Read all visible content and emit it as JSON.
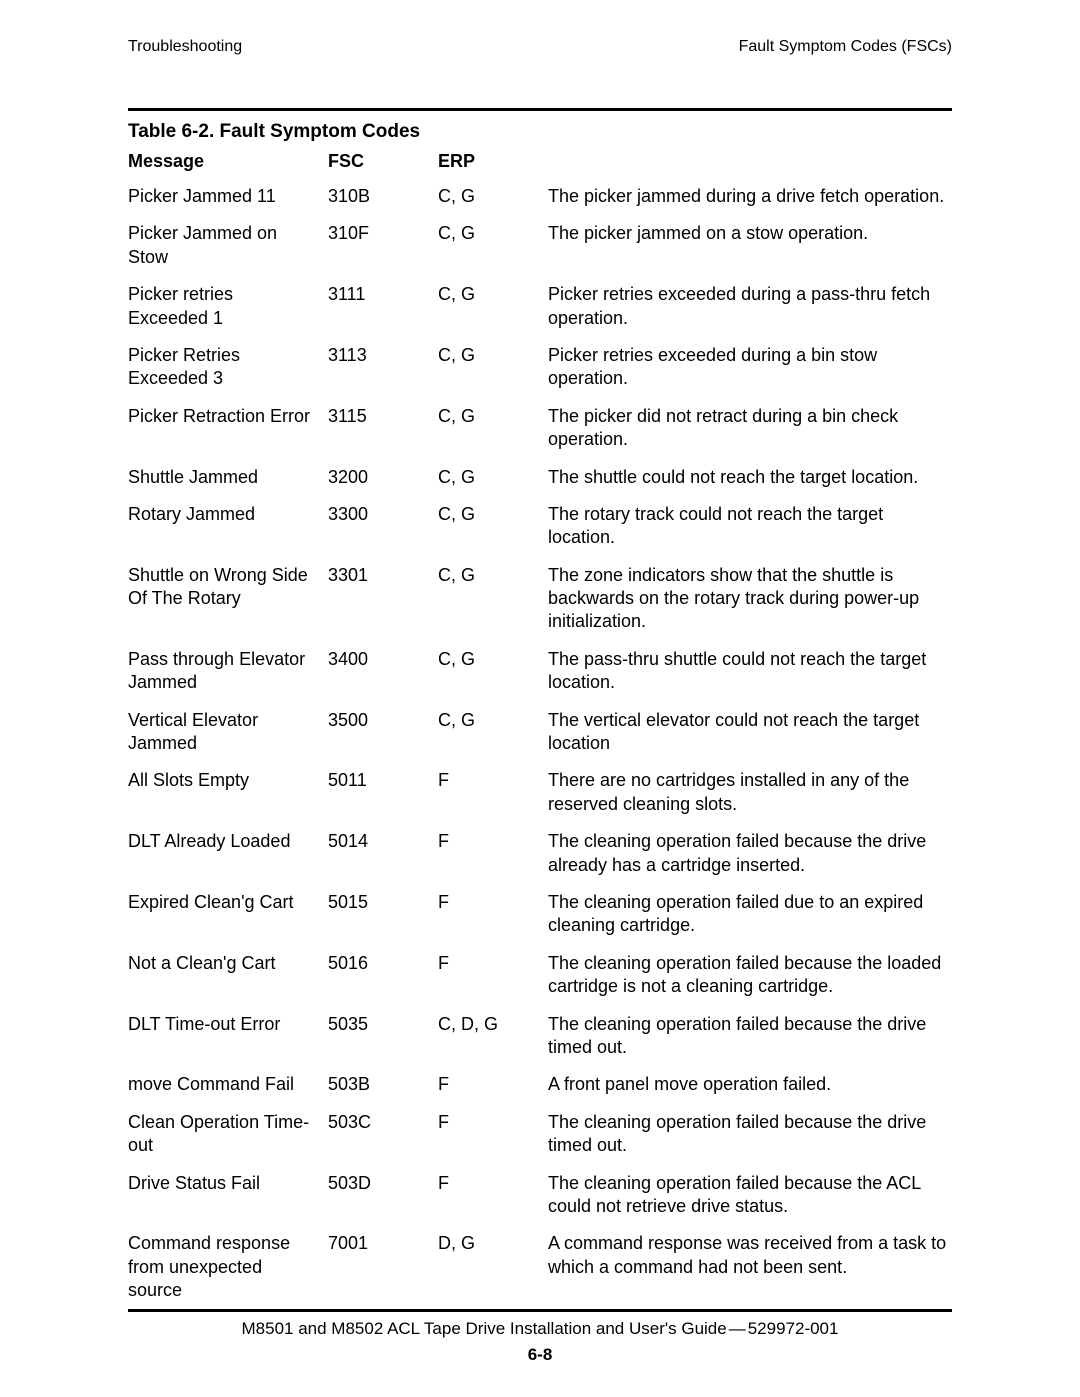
{
  "header": {
    "left": "Troubleshooting",
    "right": "Fault Symptom Codes (FSCs)"
  },
  "table": {
    "title": "Table 6-2.  Fault Symptom Codes",
    "columns": {
      "message": "Message",
      "fsc": "FSC",
      "erp": "ERP"
    },
    "rows": [
      {
        "message": "Picker Jammed 11",
        "fsc": "310B",
        "erp": "C, G",
        "desc": "The picker jammed during a drive fetch operation."
      },
      {
        "message": "Picker Jammed on Stow",
        "fsc": "310F",
        "erp": "C, G",
        "desc": "The picker jammed on a stow operation."
      },
      {
        "message": "Picker retries Exceeded 1",
        "fsc": "3111",
        "erp": "C, G",
        "desc": "Picker retries exceeded during a pass-thru fetch operation."
      },
      {
        "message": "Picker Retries Exceeded 3",
        "fsc": "3113",
        "erp": "C, G",
        "desc": "Picker retries exceeded during a bin stow operation."
      },
      {
        "message": "Picker Retraction Error",
        "fsc": "3115",
        "erp": "C, G",
        "desc": "The picker did not retract during a bin check operation."
      },
      {
        "message": "Shuttle Jammed",
        "fsc": "3200",
        "erp": "C, G",
        "desc": "The shuttle could not reach the target location."
      },
      {
        "message": "Rotary Jammed",
        "fsc": "3300",
        "erp": "C, G",
        "desc": "The rotary track could not reach the target location."
      },
      {
        "message": "Shuttle on Wrong Side Of The Rotary",
        "fsc": "3301",
        "erp": "C, G",
        "desc": "The zone indicators show that the shuttle is backwards on the rotary track during power-up initialization."
      },
      {
        "message": "Pass through Elevator Jammed",
        "fsc": "3400",
        "erp": "C, G",
        "desc": "The pass-thru shuttle could not reach the target location."
      },
      {
        "message": "Vertical Elevator Jammed",
        "fsc": "3500",
        "erp": "C, G",
        "desc": "The vertical elevator could not reach the target location"
      },
      {
        "message": "All Slots Empty",
        "fsc": "5011",
        "erp": "F",
        "desc": "There are no cartridges installed in any of the reserved cleaning slots."
      },
      {
        "message": "DLT Already Loaded",
        "fsc": "5014",
        "erp": "F",
        "desc": "The cleaning operation failed because the drive already has a cartridge inserted."
      },
      {
        "message": "Expired Clean'g Cart",
        "fsc": "5015",
        "erp": "F",
        "desc": "The cleaning operation failed due to an expired cleaning cartridge."
      },
      {
        "message": "Not a Clean'g Cart",
        "fsc": "5016",
        "erp": "F",
        "desc": "The cleaning operation failed because the loaded cartridge is not a cleaning cartridge."
      },
      {
        "message": "DLT Time-out Error",
        "fsc": "5035",
        "erp": "C, D, G",
        "desc": "The cleaning operation failed because the drive timed out."
      },
      {
        "message": "move Command Fail",
        "fsc": "503B",
        "erp": "F",
        "desc": "A front panel move operation failed."
      },
      {
        "message": "Clean Operation Time-out",
        "fsc": "503C",
        "erp": "F",
        "desc": "The cleaning operation failed because the drive timed out."
      },
      {
        "message": "Drive Status Fail",
        "fsc": "503D",
        "erp": "F",
        "desc": "The cleaning operation failed because the ACL could not retrieve drive status."
      },
      {
        "message": "Command response from unexpected source",
        "fsc": "7001",
        "erp": "D, G",
        "desc": "A command response was received from a task to which a command had not been sent."
      }
    ]
  },
  "footer": {
    "line1_left": "M8501 and M8502 ACL Tape Drive Installation and User's Guide",
    "line1_right": "529972-001",
    "page": "6-8"
  }
}
